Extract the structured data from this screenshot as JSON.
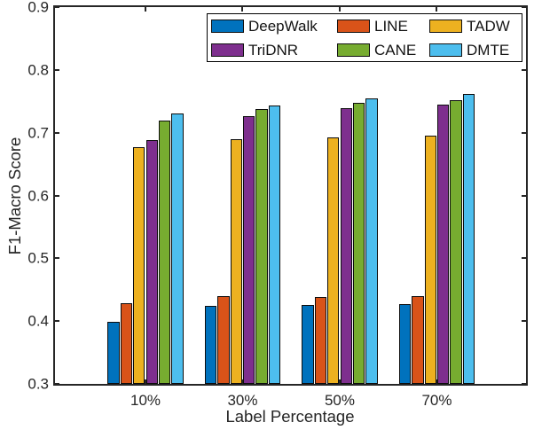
{
  "figure": {
    "background": "#ffffff",
    "text_color": "#262626",
    "axis_color": "#262626",
    "bar_edge_color": "#0d0d0d"
  },
  "chart_data": {
    "type": "bar",
    "title": "",
    "xlabel": "Label Percentage",
    "ylabel": "F1-Macro Score",
    "categories": [
      "10%",
      "30%",
      "50%",
      "70%"
    ],
    "series": [
      {
        "name": "DeepWalk",
        "color": "#0072BD",
        "values": [
          0.399,
          0.424,
          0.426,
          0.427
        ]
      },
      {
        "name": "LINE",
        "color": "#D95319",
        "values": [
          0.428,
          0.44,
          0.439,
          0.44
        ]
      },
      {
        "name": "TADW",
        "color": "#EDB120",
        "values": [
          0.677,
          0.69,
          0.693,
          0.695
        ]
      },
      {
        "name": "TriDNR",
        "color": "#7E2F8E",
        "values": [
          0.688,
          0.727,
          0.739,
          0.745
        ]
      },
      {
        "name": "CANE",
        "color": "#77AC30",
        "values": [
          0.719,
          0.738,
          0.748,
          0.752
        ]
      },
      {
        "name": "DMTE",
        "color": "#4DBEEE",
        "values": [
          0.73,
          0.744,
          0.755,
          0.761
        ]
      }
    ],
    "ylim": [
      0.3,
      0.9
    ],
    "yticks": [
      "0.3",
      "0.4",
      "0.5",
      "0.6",
      "0.7",
      "0.8",
      "0.9"
    ],
    "grid": false,
    "legend_position": "top-right-inside",
    "legend_columns": 3,
    "legend_order": [
      "DeepWalk",
      "LINE",
      "TADW",
      "TriDNR",
      "CANE",
      "DMTE"
    ]
  }
}
